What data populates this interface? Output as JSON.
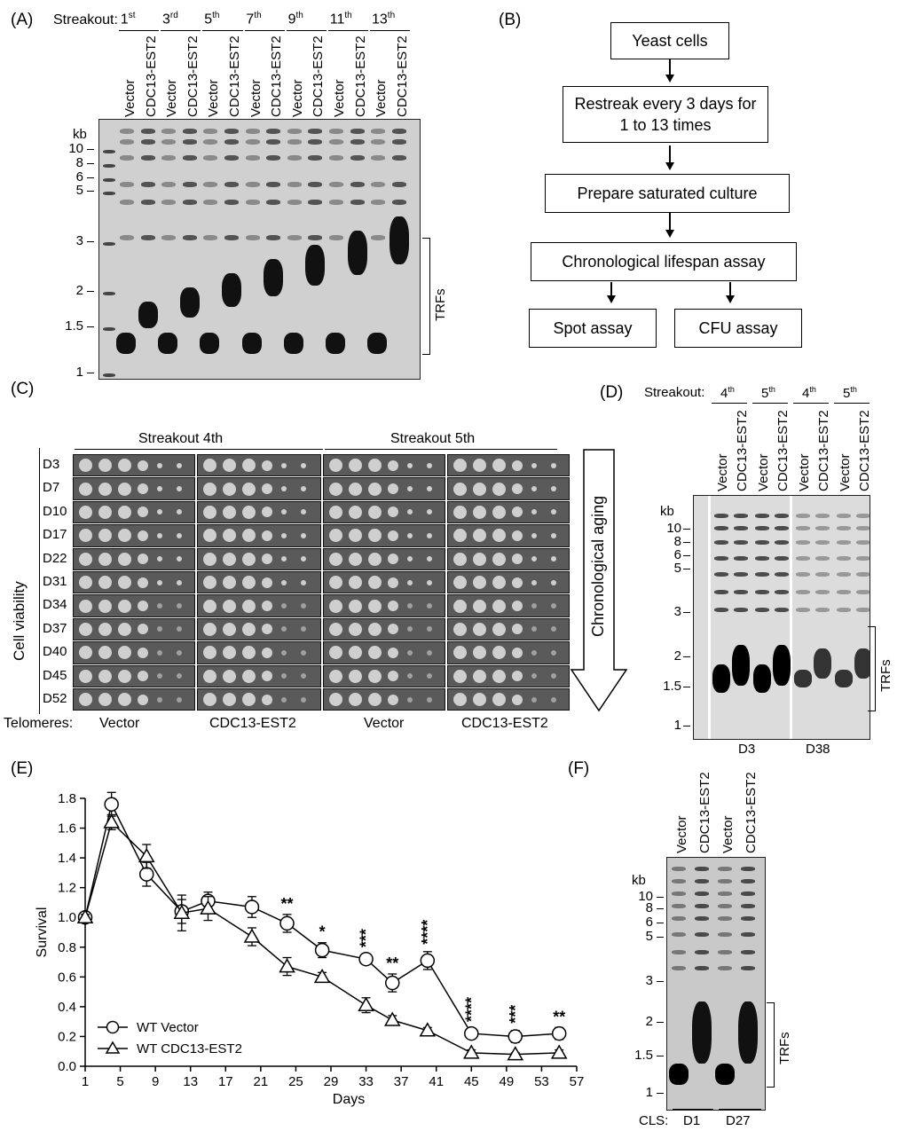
{
  "panels": {
    "a": "(A)",
    "b": "(B)",
    "c": "(C)",
    "d": "(D)",
    "e": "(E)",
    "f": "(F)"
  },
  "panel_a": {
    "streakout_label": "Streakout:",
    "streakouts": [
      {
        "num": "1",
        "sup": "st"
      },
      {
        "num": "3",
        "sup": "rd"
      },
      {
        "num": "5",
        "sup": "th"
      },
      {
        "num": "7",
        "sup": "th"
      },
      {
        "num": "9",
        "sup": "th"
      },
      {
        "num": "11",
        "sup": "th"
      },
      {
        "num": "13",
        "sup": "th"
      }
    ],
    "lanes": [
      "Vector",
      "CDC13-EST2"
    ],
    "kb_label": "kb",
    "kb_markers": [
      "10",
      "8",
      "6",
      "5",
      "3",
      "2",
      "1.5",
      "1"
    ],
    "trfs": "TRFs"
  },
  "panel_b": {
    "steps": [
      "Yeast cells",
      "Restreak every 3 days for 1 to 13 times",
      "Prepare saturated culture",
      "Chronological lifespan assay",
      "Spot assay",
      "CFU assay"
    ]
  },
  "panel_c": {
    "group1": "Streakout 4th",
    "group2": "Streakout 5th",
    "y_label": "Cell viability",
    "days": [
      "D3",
      "D7",
      "D10",
      "D17",
      "D22",
      "D31",
      "D34",
      "D37",
      "D40",
      "D45",
      "D52"
    ],
    "telomeres_label": "Telomeres:",
    "columns": [
      "Vector",
      "CDC13-EST2",
      "Vector",
      "CDC13-EST2"
    ],
    "arrow_label": "Chronological aging"
  },
  "panel_d": {
    "streakout_label": "Streakout:",
    "streakouts": [
      {
        "num": "4",
        "sup": "th"
      },
      {
        "num": "5",
        "sup": "th"
      },
      {
        "num": "4",
        "sup": "th"
      },
      {
        "num": "5",
        "sup": "th"
      }
    ],
    "lanes": [
      "Vector",
      "CDC13-EST2"
    ],
    "kb_label": "kb",
    "kb_markers": [
      "10",
      "8",
      "6",
      "5",
      "3",
      "2",
      "1.5",
      "1"
    ],
    "trfs": "TRFs",
    "days": [
      "D3",
      "D38"
    ]
  },
  "panel_e": {
    "chart_data": {
      "type": "line",
      "xlabel": "Days",
      "ylabel": "Survival",
      "xlim": [
        1,
        57
      ],
      "ylim": [
        0,
        1.8
      ],
      "xticks": [
        "1",
        "5",
        "9",
        "13",
        "17",
        "21",
        "25",
        "29",
        "33",
        "37",
        "41",
        "45",
        "49",
        "53",
        "57"
      ],
      "yticks": [
        "0.0",
        "0.2",
        "0.4",
        "0.6",
        "0.8",
        "1.0",
        "1.2",
        "1.4",
        "1.6",
        "1.8"
      ],
      "legend": "bottom-left",
      "series": [
        {
          "name": "WT Vector",
          "marker": "circle",
          "x": [
            1,
            4,
            8,
            12,
            15,
            20,
            24,
            28,
            33,
            36,
            40,
            45,
            50,
            55
          ],
          "y": [
            1.0,
            1.76,
            1.29,
            1.04,
            1.11,
            1.07,
            0.96,
            0.78,
            0.72,
            0.56,
            0.71,
            0.22,
            0.2,
            0.22
          ],
          "err": [
            0.02,
            0.08,
            0.08,
            0.08,
            0.06,
            0.07,
            0.06,
            0.05,
            0.03,
            0.06,
            0.06,
            0.03,
            0.04,
            0.04
          ]
        },
        {
          "name": "WT CDC13-EST2",
          "marker": "triangle",
          "x": [
            1,
            4,
            8,
            12,
            15,
            20,
            24,
            28,
            33,
            36,
            40,
            45,
            50,
            55
          ],
          "y": [
            1.0,
            1.64,
            1.41,
            1.03,
            1.06,
            0.87,
            0.67,
            0.6,
            0.41,
            0.31,
            0.24,
            0.09,
            0.08,
            0.09
          ],
          "err": [
            0.02,
            0.05,
            0.08,
            0.12,
            0.08,
            0.06,
            0.06,
            0.03,
            0.05,
            0.03,
            0.02,
            0.02,
            0.01,
            0.02
          ]
        }
      ],
      "annotations": [
        {
          "x": 24,
          "text": "**"
        },
        {
          "x": 28,
          "text": "*"
        },
        {
          "x": 33,
          "text": "***"
        },
        {
          "x": 36,
          "text": "**"
        },
        {
          "x": 40,
          "text": "****"
        },
        {
          "x": 45,
          "text": "****"
        },
        {
          "x": 50,
          "text": "***"
        },
        {
          "x": 55,
          "text": "**"
        }
      ]
    }
  },
  "panel_f": {
    "lanes": [
      "Vector",
      "CDC13-EST2",
      "Vector",
      "CDC13-EST2"
    ],
    "kb_label": "kb",
    "kb_markers": [
      "10",
      "8",
      "6",
      "5",
      "3",
      "2",
      "1.5",
      "1"
    ],
    "trfs": "TRFs",
    "cls_label": "CLS:",
    "days": [
      "D1",
      "D27"
    ]
  }
}
